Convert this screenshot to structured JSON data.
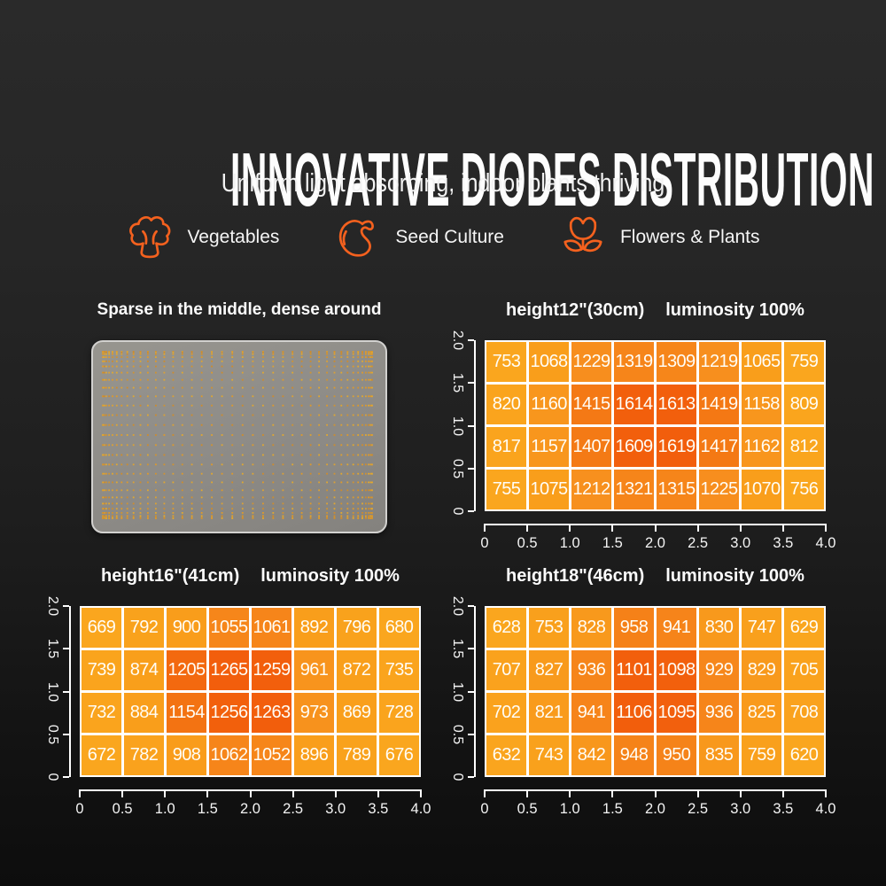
{
  "theme": {
    "accent": "#F4611E",
    "cell_text": "#FFFDF6",
    "axis_color": "#FFFFFF",
    "colormap": [
      [
        "0",
        "#FAA61E"
      ],
      [
        "0.38",
        "#F99E1B"
      ],
      [
        "0.55",
        "#F78E1E"
      ],
      [
        "0.70",
        "#F58118"
      ],
      [
        "0.85",
        "#F36E10"
      ],
      [
        "1",
        "#F25E0C"
      ]
    ]
  },
  "header": {
    "title": "INNOVATIVE DIODES DISTRIBUTION",
    "subtitle": "Uniform light absorbing, indoor plants thriving"
  },
  "categories": [
    {
      "icon": "broccoli-icon",
      "label": "Vegetables"
    },
    {
      "icon": "seed-icon",
      "label": "Seed Culture"
    },
    {
      "icon": "flower-icon",
      "label": "Flowers & Plants"
    }
  ],
  "board": {
    "title": "Sparse in the middle, dense around",
    "base_color": "#8D8B87",
    "border_color": "#D2D1CF",
    "dot_palette": [
      "#DDA233",
      "#D19330",
      "#E2A82F",
      "#CF8C2B",
      "#E09A28"
    ],
    "cols": 42,
    "rows": 27
  },
  "chart_data": [
    {
      "type": "heatmap",
      "title_height": "height12\"(30cm)",
      "title_lum": "luminosity 100%",
      "x_ticks": [
        "0",
        "0.5",
        "1.0",
        "1.5",
        "2.0",
        "2.5",
        "3.0",
        "3.5",
        "4.0"
      ],
      "y_ticks": [
        "2.0",
        "1.5",
        "1.0",
        "0.5",
        "0"
      ],
      "x_range": [
        0,
        4.0
      ],
      "y_range": [
        0,
        2.0
      ],
      "rows": [
        [
          753,
          1068,
          1229,
          1319,
          1309,
          1219,
          1065,
          759
        ],
        [
          820,
          1160,
          1415,
          1614,
          1613,
          1419,
          1158,
          809
        ],
        [
          817,
          1157,
          1407,
          1609,
          1619,
          1417,
          1162,
          812
        ],
        [
          755,
          1075,
          1212,
          1321,
          1315,
          1225,
          1070,
          756
        ]
      ]
    },
    {
      "type": "heatmap",
      "title_height": "height16\"(41cm)",
      "title_lum": "luminosity 100%",
      "x_ticks": [
        "0",
        "0.5",
        "1.0",
        "1.5",
        "2.0",
        "2.5",
        "3.0",
        "3.5",
        "4.0"
      ],
      "y_ticks": [
        "2.0",
        "1.5",
        "1.0",
        "0.5",
        "0"
      ],
      "x_range": [
        0,
        4.0
      ],
      "y_range": [
        0,
        2.0
      ],
      "rows": [
        [
          669,
          792,
          900,
          1055,
          1061,
          892,
          796,
          680
        ],
        [
          739,
          874,
          1205,
          1265,
          1259,
          961,
          872,
          735
        ],
        [
          732,
          884,
          1154,
          1256,
          1263,
          973,
          869,
          728
        ],
        [
          672,
          782,
          908,
          1062,
          1052,
          896,
          789,
          676
        ]
      ]
    },
    {
      "type": "heatmap",
      "title_height": "height18\"(46cm)",
      "title_lum": "luminosity 100%",
      "x_ticks": [
        "0",
        "0.5",
        "1.0",
        "1.5",
        "2.0",
        "2.5",
        "3.0",
        "3.5",
        "4.0"
      ],
      "y_ticks": [
        "2.0",
        "1.5",
        "1.0",
        "0.5",
        "0"
      ],
      "x_range": [
        0,
        4.0
      ],
      "y_range": [
        0,
        2.0
      ],
      "rows": [
        [
          628,
          753,
          828,
          958,
          941,
          830,
          747,
          629
        ],
        [
          707,
          827,
          936,
          1101,
          1098,
          929,
          829,
          705
        ],
        [
          702,
          821,
          941,
          1106,
          1095,
          936,
          825,
          708
        ],
        [
          632,
          743,
          842,
          948,
          950,
          835,
          759,
          620
        ]
      ]
    }
  ]
}
